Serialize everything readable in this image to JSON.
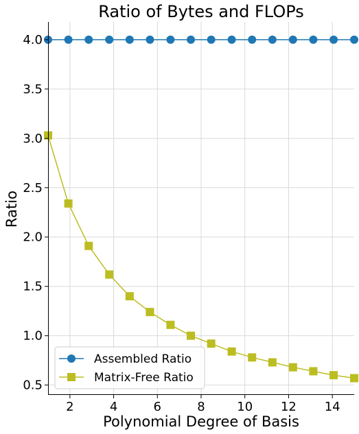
{
  "chart_data": {
    "type": "line",
    "title": "Ratio of Bytes and FLOPs",
    "xlabel": "Polynomial Degree of Basis",
    "ylabel": "Ratio",
    "xlim": [
      1,
      15
    ],
    "ylim": [
      0.4,
      4.18
    ],
    "xticks": [
      "2",
      "4",
      "6",
      "8",
      "10",
      "12",
      "14"
    ],
    "yticks": [
      "0.5",
      "1.0",
      "1.5",
      "2.0",
      "2.5",
      "3.0",
      "3.5",
      "4.0"
    ],
    "grid": true,
    "legend_position": "lower-left",
    "x": [
      1.0,
      1.93,
      2.86,
      3.8,
      4.73,
      5.66,
      6.6,
      7.53,
      8.46,
      9.4,
      10.33,
      11.26,
      12.2,
      13.13,
      14.06,
      15.0
    ],
    "series": [
      {
        "name": "Assembled Ratio",
        "color": "#1f77b4",
        "marker": "circle",
        "values": [
          4.0,
          4.0,
          4.0,
          4.0,
          4.0,
          4.0,
          4.0,
          4.0,
          4.0,
          4.0,
          4.0,
          4.0,
          4.0,
          4.0,
          4.0,
          4.0
        ]
      },
      {
        "name": "Matrix-Free Ratio",
        "color": "#bcbd22",
        "marker": "square",
        "values": [
          3.03,
          2.34,
          1.91,
          1.62,
          1.4,
          1.24,
          1.11,
          1.0,
          0.92,
          0.84,
          0.78,
          0.73,
          0.68,
          0.64,
          0.6,
          0.57
        ]
      }
    ]
  }
}
